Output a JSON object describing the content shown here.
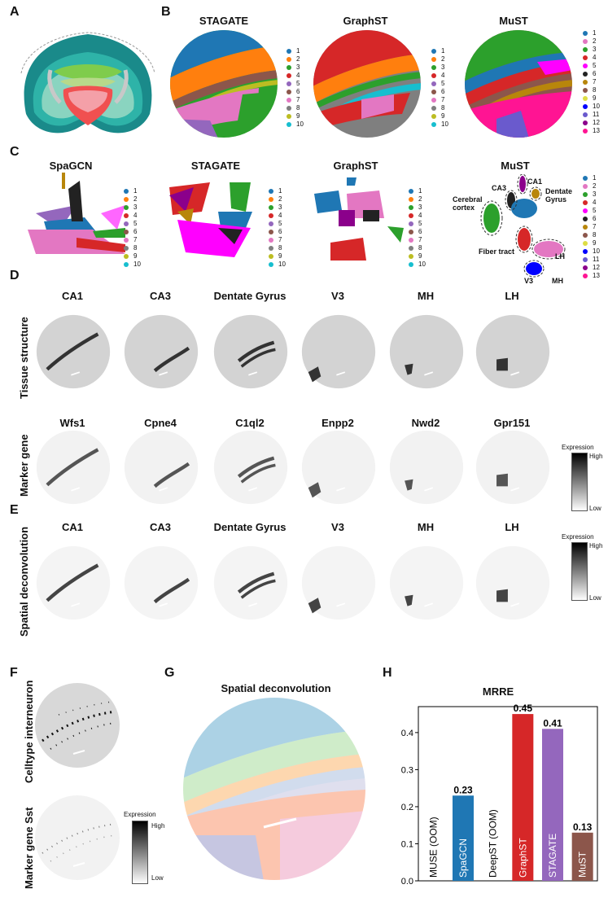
{
  "panel_letters": {
    "a": "A",
    "b": "B",
    "c": "C",
    "d": "D",
    "e": "E",
    "f": "F",
    "g": "G",
    "h": "H"
  },
  "b_titles": [
    "STAGATE",
    "GraphST",
    "MuST"
  ],
  "c_titles": [
    "SpaGCN",
    "STAGATE",
    "GraphST",
    "MuST"
  ],
  "legend10": [
    "1",
    "2",
    "3",
    "4",
    "5",
    "6",
    "7",
    "8",
    "9",
    "10"
  ],
  "legend13": [
    "1",
    "2",
    "3",
    "4",
    "5",
    "6",
    "7",
    "8",
    "9",
    "10",
    "11",
    "12",
    "13"
  ],
  "colors10": [
    "#1f77b4",
    "#ff7f0e",
    "#2ca02c",
    "#d62728",
    "#9467bd",
    "#8c564b",
    "#e377c2",
    "#7f7f7f",
    "#bcbd22",
    "#17becf"
  ],
  "colors13": [
    "#1f77b4",
    "#e377c2",
    "#2ca02c",
    "#d62728",
    "#ff00ff",
    "#222222",
    "#b8860b",
    "#8c564b",
    "#dddd44",
    "#0000ff",
    "#6a5acd",
    "#8b008b",
    "#ff1493"
  ],
  "must_annotations": {
    "ca1": "CA1",
    "ca3": "CA3",
    "dentate": "Dentate\nGyrus",
    "cerebral": "Cerebral\ncortex",
    "fiber": "Fiber tract",
    "lh": "LH",
    "v3": "V3",
    "mh": "MH"
  },
  "d_side": {
    "top": "Tissue structure",
    "bottom": "Marker gene"
  },
  "d_top_titles": [
    "CA1",
    "CA3",
    "Dentate Gyrus",
    "V3",
    "MH",
    "LH"
  ],
  "d_bottom_titles": [
    "Wfs1",
    "Cpne4",
    "C1ql2",
    "Enpp2",
    "Nwd2",
    "Gpr151"
  ],
  "e_side": "Spatial deconvolution",
  "e_titles": [
    "CA1",
    "CA3",
    "Dentate Gyrus",
    "V3",
    "MH",
    "LH"
  ],
  "colorbar": {
    "title": "Expression",
    "high": "High",
    "low": "Low"
  },
  "f_side": {
    "top": "Celltype interneuron",
    "bottom": "Marker gene Sst"
  },
  "g_title": "Spatial deconvolution",
  "chart_data": {
    "type": "bar",
    "title": "MRRE",
    "categories": [
      "MUSE (OOM)",
      "SpaGCN",
      "DeepST (OOM)",
      "GraphST",
      "STAGATE",
      "MuST"
    ],
    "values": [
      null,
      0.23,
      null,
      0.45,
      0.41,
      0.13
    ],
    "value_labels": [
      "",
      "0.23",
      "",
      "0.45",
      "0.41",
      "0.13"
    ],
    "colors": [
      "#1f77b4",
      "#1f77b4",
      "#1f77b4",
      "#d62728",
      "#9467bd",
      "#8c564b"
    ],
    "ylim": [
      0,
      0.47
    ],
    "yticks": [
      "0.0",
      "0.1",
      "0.2",
      "0.3",
      "0.4"
    ],
    "xlabel": "",
    "ylabel": ""
  }
}
